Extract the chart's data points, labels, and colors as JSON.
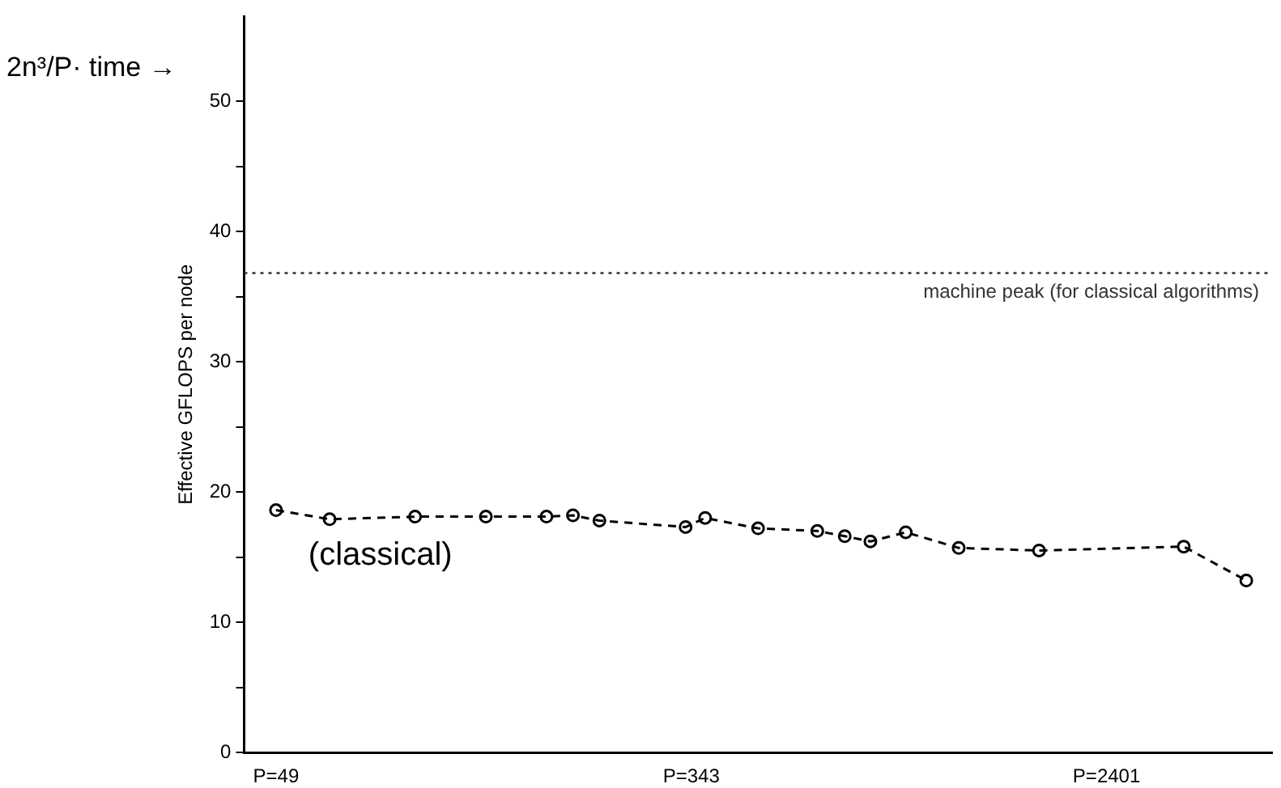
{
  "chart_data": {
    "type": "line",
    "ylabel": "Effective GFLOPS per node",
    "annotations": [
      "2n³/P· time →"
    ],
    "x": [
      49,
      63,
      94,
      131,
      174,
      197,
      223,
      334,
      366,
      469,
      619,
      704,
      794,
      937,
      1201,
      1750,
      3447,
      4621
    ],
    "series": [
      {
        "name": "(classical)",
        "color": "#000000",
        "values": [
          18.6,
          17.9,
          18.1,
          18.1,
          18.1,
          18.2,
          17.8,
          17.3,
          18.0,
          17.2,
          17.0,
          16.6,
          16.2,
          16.9,
          15.7,
          15.5,
          15.8,
          13.2
        ]
      }
    ],
    "log": "x",
    "xlim": [
      42.2,
      5215
    ],
    "xticks": [
      {
        "value": 49,
        "label": "P=49"
      },
      {
        "value": 343,
        "label": "P=343"
      },
      {
        "value": 2401,
        "label": "P=2401"
      }
    ],
    "ylim": [
      0,
      56.5
    ],
    "yticks": [
      0,
      {
        "value": 5,
        "label": null
      },
      10,
      {
        "value": 15,
        "label": null
      },
      20,
      {
        "value": 25,
        "label": null
      },
      30,
      {
        "value": 35,
        "label": null
      },
      40,
      {
        "value": 45,
        "label": null
      },
      50
    ],
    "ref_lines": [
      {
        "axis": "y",
        "value": 36.8,
        "label": "machine peak (for classical algorithms)",
        "color": "#333333",
        "line_style": "dotted"
      }
    ],
    "grid": false,
    "legend": false,
    "marker": "circle",
    "line_style": "dashed"
  }
}
